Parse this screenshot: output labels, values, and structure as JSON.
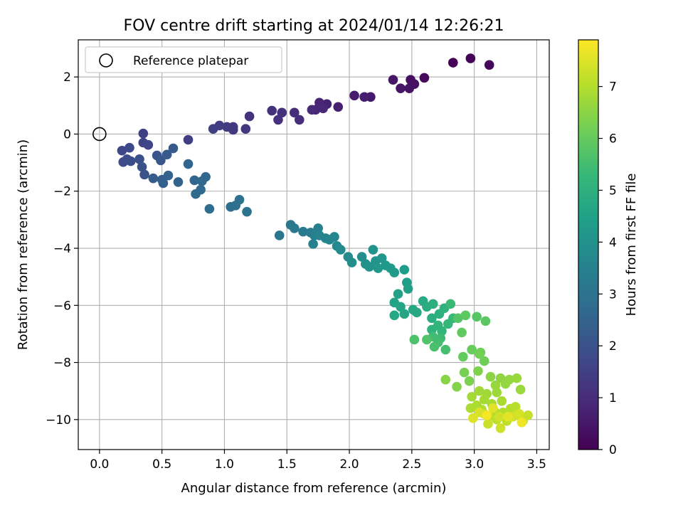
{
  "chart_data": {
    "type": "scatter",
    "title": "FOV centre drift starting at 2024/01/14 12:26:21",
    "xlabel": "Angular distance from reference (arcmin)",
    "ylabel": "Rotation from reference (arcmin)",
    "xlim": [
      -0.17,
      3.6
    ],
    "ylim": [
      -11.05,
      3.3
    ],
    "xticks": [
      0.0,
      0.5,
      1.0,
      1.5,
      2.0,
      2.5,
      3.0,
      3.5
    ],
    "xtick_labels": [
      "0.0",
      "0.5",
      "1.0",
      "1.5",
      "2.0",
      "2.5",
      "3.0",
      "3.5"
    ],
    "yticks": [
      -10,
      -8,
      -6,
      -4,
      -2,
      0,
      2
    ],
    "ytick_labels": [
      "−10",
      "−8",
      "−6",
      "−4",
      "−2",
      "0",
      "2"
    ],
    "grid": true,
    "legend": {
      "position": "top-left",
      "entries": [
        "Reference platepar"
      ]
    },
    "reference_point": {
      "x": 0.0,
      "y": 0.0
    },
    "colorbar": {
      "label": "Hours from first FF file",
      "colormap": "viridis",
      "range": [
        0,
        7.9
      ],
      "ticks": [
        0,
        1,
        2,
        3,
        4,
        5,
        6,
        7
      ],
      "tick_labels": [
        "0",
        "1",
        "2",
        "3",
        "4",
        "5",
        "6",
        "7"
      ]
    },
    "colormap_stops": [
      "#440154",
      "#482878",
      "#3e4989",
      "#31688e",
      "#26828e",
      "#1f9e89",
      "#35b779",
      "#6ece58",
      "#b5de2b",
      "#fde725"
    ],
    "points": [
      [
        2.83,
        2.5,
        0.05
      ],
      [
        2.97,
        2.65,
        0.1
      ],
      [
        3.12,
        2.42,
        0.15
      ],
      [
        2.6,
        1.97,
        0.25
      ],
      [
        2.49,
        1.9,
        0.3
      ],
      [
        2.52,
        1.75,
        0.35
      ],
      [
        2.48,
        1.6,
        0.4
      ],
      [
        2.41,
        1.6,
        0.45
      ],
      [
        2.35,
        1.9,
        0.5
      ],
      [
        2.17,
        1.3,
        0.55
      ],
      [
        2.04,
        1.35,
        0.6
      ],
      [
        2.12,
        1.3,
        0.65
      ],
      [
        1.91,
        0.95,
        0.7
      ],
      [
        1.82,
        1.05,
        0.75
      ],
      [
        1.76,
        1.1,
        0.8
      ],
      [
        1.73,
        0.85,
        0.85
      ],
      [
        1.79,
        0.9,
        0.9
      ],
      [
        1.7,
        0.85,
        0.95
      ],
      [
        1.6,
        0.5,
        1.0
      ],
      [
        1.56,
        0.75,
        1.05
      ],
      [
        1.46,
        0.75,
        1.1
      ],
      [
        1.43,
        0.5,
        1.12
      ],
      [
        1.38,
        0.82,
        1.15
      ],
      [
        1.2,
        0.62,
        1.2
      ],
      [
        1.17,
        0.18,
        1.25
      ],
      [
        1.07,
        0.25,
        1.3
      ],
      [
        1.07,
        0.15,
        1.33
      ],
      [
        1.02,
        0.25,
        1.37
      ],
      [
        0.96,
        0.3,
        1.4
      ],
      [
        0.91,
        0.18,
        1.45
      ],
      [
        0.71,
        -0.2,
        1.5
      ],
      [
        0.35,
        0.02,
        1.55
      ],
      [
        0.35,
        -0.3,
        1.6
      ],
      [
        0.39,
        -0.38,
        1.65
      ],
      [
        0.18,
        -0.58,
        1.7
      ],
      [
        0.24,
        -0.48,
        1.75
      ],
      [
        0.19,
        -0.98,
        1.8
      ],
      [
        0.22,
        -0.88,
        1.85
      ],
      [
        0.25,
        -0.95,
        1.9
      ],
      [
        0.32,
        -0.88,
        1.95
      ],
      [
        0.34,
        -1.15,
        2.0
      ],
      [
        0.36,
        -1.42,
        2.05
      ],
      [
        0.46,
        -0.75,
        2.1
      ],
      [
        0.49,
        -0.92,
        2.15
      ],
      [
        0.54,
        -0.72,
        2.2
      ],
      [
        0.59,
        -0.5,
        2.25
      ],
      [
        0.43,
        -1.55,
        2.3
      ],
      [
        0.5,
        -1.6,
        2.35
      ],
      [
        0.51,
        -1.72,
        2.4
      ],
      [
        0.55,
        -1.45,
        2.45
      ],
      [
        0.63,
        -1.68,
        2.5
      ],
      [
        0.71,
        -1.05,
        2.55
      ],
      [
        0.76,
        -1.62,
        2.6
      ],
      [
        0.82,
        -1.65,
        2.62
      ],
      [
        0.85,
        -1.5,
        2.65
      ],
      [
        0.81,
        -1.95,
        2.7
      ],
      [
        0.77,
        -2.1,
        2.75
      ],
      [
        0.88,
        -2.62,
        2.8
      ],
      [
        1.05,
        -2.55,
        2.85
      ],
      [
        1.09,
        -2.5,
        2.9
      ],
      [
        1.12,
        -2.3,
        2.95
      ],
      [
        1.18,
        -2.72,
        3.0
      ],
      [
        1.44,
        -3.55,
        3.1
      ],
      [
        1.53,
        -3.18,
        3.15
      ],
      [
        1.56,
        -3.3,
        3.2
      ],
      [
        1.63,
        -3.42,
        3.25
      ],
      [
        1.69,
        -3.45,
        3.3
      ],
      [
        1.72,
        -3.55,
        3.35
      ],
      [
        1.75,
        -3.3,
        3.4
      ],
      [
        1.71,
        -3.85,
        3.45
      ],
      [
        1.76,
        -3.55,
        3.5
      ],
      [
        1.81,
        -3.65,
        3.55
      ],
      [
        1.84,
        -3.7,
        3.6
      ],
      [
        1.88,
        -3.6,
        3.65
      ],
      [
        1.9,
        -3.92,
        3.7
      ],
      [
        1.93,
        -4.05,
        3.75
      ],
      [
        1.99,
        -4.3,
        3.8
      ],
      [
        2.02,
        -4.5,
        3.85
      ],
      [
        2.1,
        -4.3,
        3.9
      ],
      [
        2.13,
        -4.55,
        3.95
      ],
      [
        2.16,
        -4.65,
        4.0
      ],
      [
        2.19,
        -4.05,
        4.05
      ],
      [
        2.21,
        -4.45,
        4.1
      ],
      [
        2.26,
        -4.35,
        4.15
      ],
      [
        2.23,
        -4.7,
        4.2
      ],
      [
        2.29,
        -4.6,
        4.22
      ],
      [
        2.33,
        -4.7,
        4.25
      ],
      [
        2.36,
        -4.85,
        4.3
      ],
      [
        2.44,
        -4.75,
        4.35
      ],
      [
        2.46,
        -5.2,
        4.4
      ],
      [
        2.47,
        -5.42,
        4.45
      ],
      [
        2.39,
        -5.6,
        4.5
      ],
      [
        2.36,
        -5.9,
        4.55
      ],
      [
        2.41,
        -6.05,
        4.6
      ],
      [
        2.44,
        -6.3,
        4.65
      ],
      [
        2.36,
        -6.35,
        4.7
      ],
      [
        2.51,
        -6.15,
        4.72
      ],
      [
        2.54,
        -6.25,
        4.75
      ],
      [
        2.59,
        -5.85,
        4.8
      ],
      [
        2.62,
        -6.05,
        4.85
      ],
      [
        2.66,
        -6.45,
        4.9
      ],
      [
        2.67,
        -5.95,
        4.95
      ],
      [
        2.72,
        -6.3,
        5.0
      ],
      [
        2.76,
        -6.1,
        5.05
      ],
      [
        2.66,
        -6.85,
        5.1
      ],
      [
        2.71,
        -6.7,
        5.15
      ],
      [
        2.74,
        -6.9,
        5.2
      ],
      [
        2.79,
        -6.65,
        5.25
      ],
      [
        2.83,
        -6.45,
        5.3
      ],
      [
        2.81,
        -5.95,
        5.35
      ],
      [
        2.73,
        -7.15,
        5.4
      ],
      [
        2.67,
        -7.1,
        5.45
      ],
      [
        2.71,
        -7.3,
        5.5
      ],
      [
        2.77,
        -7.55,
        5.55
      ],
      [
        2.68,
        -7.45,
        5.6
      ],
      [
        2.52,
        -7.2,
        5.65
      ],
      [
        2.62,
        -7.2,
        5.7
      ],
      [
        2.87,
        -6.45,
        5.75
      ],
      [
        3.02,
        -6.4,
        5.8
      ],
      [
        3.09,
        -6.55,
        5.85
      ],
      [
        2.93,
        -6.35,
        5.9
      ],
      [
        2.9,
        -6.95,
        5.95
      ],
      [
        2.91,
        -7.8,
        6.0
      ],
      [
        2.98,
        -7.55,
        6.05
      ],
      [
        3.05,
        -7.65,
        6.1
      ],
      [
        3.08,
        -7.95,
        6.15
      ],
      [
        3.04,
        -7.7,
        6.2
      ],
      [
        2.92,
        -8.35,
        6.25
      ],
      [
        2.96,
        -8.65,
        6.3
      ],
      [
        3.03,
        -8.3,
        6.35
      ],
      [
        2.86,
        -8.85,
        6.4
      ],
      [
        2.77,
        -8.6,
        6.45
      ],
      [
        3.13,
        -8.5,
        6.5
      ],
      [
        3.21,
        -8.55,
        6.55
      ],
      [
        3.28,
        -8.6,
        6.6
      ],
      [
        3.25,
        -8.75,
        6.62
      ],
      [
        3.17,
        -8.8,
        6.65
      ],
      [
        3.34,
        -8.55,
        6.68
      ],
      [
        3.37,
        -8.95,
        6.7
      ],
      [
        3.18,
        -9.05,
        6.72
      ],
      [
        3.1,
        -9.1,
        6.75
      ],
      [
        3.04,
        -9.0,
        6.77
      ],
      [
        2.98,
        -9.2,
        6.8
      ],
      [
        3.08,
        -9.3,
        6.82
      ],
      [
        3.14,
        -9.45,
        6.85
      ],
      [
        3.22,
        -9.35,
        6.87
      ],
      [
        3.02,
        -9.5,
        6.9
      ],
      [
        2.97,
        -9.6,
        6.92
      ],
      [
        3.06,
        -9.65,
        6.95
      ],
      [
        3.16,
        -9.7,
        6.97
      ],
      [
        3.23,
        -9.75,
        7.0
      ],
      [
        3.29,
        -9.62,
        7.02
      ],
      [
        3.33,
        -9.55,
        7.05
      ],
      [
        3.12,
        -9.9,
        7.08
      ],
      [
        3.18,
        -10.0,
        7.1
      ],
      [
        3.26,
        -10.05,
        7.13
      ],
      [
        3.33,
        -9.85,
        7.16
      ],
      [
        3.39,
        -10.05,
        7.19
      ],
      [
        3.43,
        -9.85,
        7.22
      ],
      [
        3.08,
        -9.8,
        7.25
      ],
      [
        3.11,
        -10.15,
        7.28
      ],
      [
        3.21,
        -10.3,
        7.31
      ],
      [
        3.2,
        -9.9,
        7.34
      ],
      [
        3.31,
        -9.9,
        7.37
      ],
      [
        3.36,
        -9.8,
        7.4
      ],
      [
        3.04,
        -9.75,
        7.45
      ],
      [
        2.99,
        -9.95,
        7.5
      ],
      [
        3.15,
        -9.6,
        7.55
      ],
      [
        3.27,
        -9.9,
        7.6
      ],
      [
        3.38,
        -10.1,
        7.7
      ],
      [
        3.1,
        -9.85,
        7.8
      ]
    ]
  }
}
